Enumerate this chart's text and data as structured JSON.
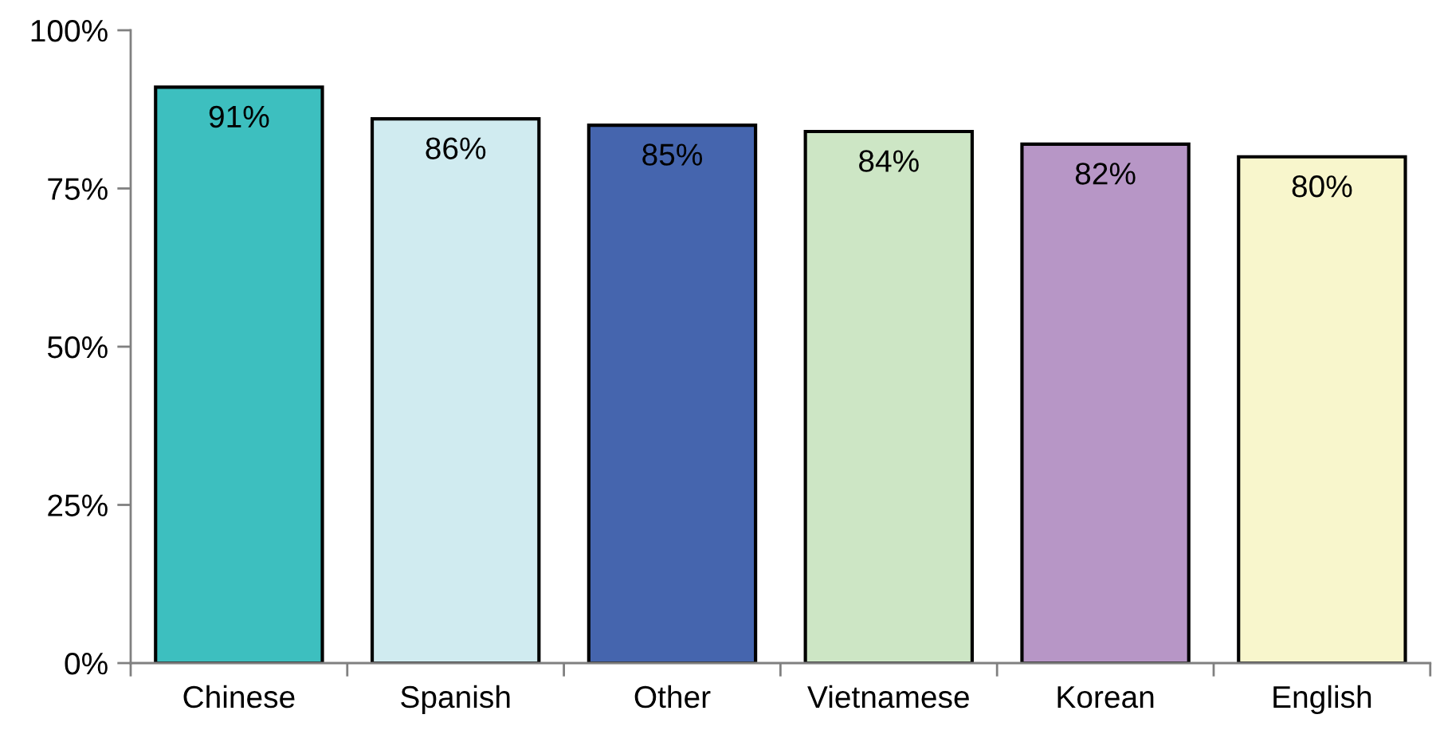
{
  "chart_data": {
    "type": "bar",
    "categories": [
      "Chinese",
      "Spanish",
      "Other",
      "Vietnamese",
      "Korean",
      "English"
    ],
    "values": [
      91,
      86,
      85,
      84,
      82,
      80
    ],
    "colors": [
      "#3dbfbf",
      "#d0ebf0",
      "#4565ae",
      "#cde6c5",
      "#b796c6",
      "#f8f6cc"
    ],
    "value_labels": [
      "91%",
      "86%",
      "85%",
      "84%",
      "82%",
      "80%"
    ],
    "ylim": [
      0,
      100
    ],
    "yticks": [
      {
        "value": 0,
        "label": "0%"
      },
      {
        "value": 25,
        "label": "25%"
      },
      {
        "value": 50,
        "label": "50%"
      },
      {
        "value": 75,
        "label": "75%"
      },
      {
        "value": 100,
        "label": "100%"
      }
    ]
  }
}
